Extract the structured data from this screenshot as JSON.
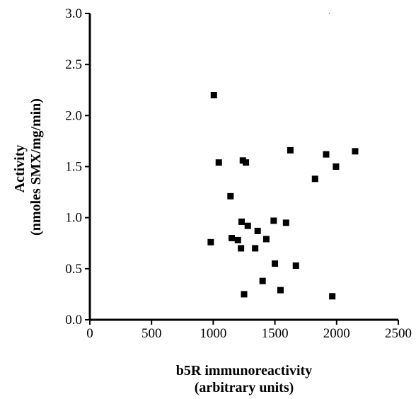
{
  "chart_data": {
    "type": "scatter",
    "title": "",
    "xlabel": [
      "b5R immunoreactivity",
      "(arbitrary units)"
    ],
    "ylabel": [
      "Activity",
      "(nmoles SMX/mg/min)"
    ],
    "xlim": [
      0,
      2500
    ],
    "ylim": [
      0,
      3.0
    ],
    "x_ticks": [
      "0",
      "500",
      "1000",
      "1500",
      "2000",
      "2500"
    ],
    "y_ticks": [
      "0.0",
      "0.5",
      "1.0",
      "1.5",
      "2.0",
      "2.5",
      "3.0"
    ],
    "grid": false,
    "legend": "none",
    "marker": "square",
    "marker_color": "#000000",
    "points": [
      {
        "x": 1005,
        "y": 2.2
      },
      {
        "x": 1045,
        "y": 1.54
      },
      {
        "x": 1240,
        "y": 1.56
      },
      {
        "x": 1265,
        "y": 1.54
      },
      {
        "x": 1625,
        "y": 1.66
      },
      {
        "x": 1915,
        "y": 1.62
      },
      {
        "x": 2150,
        "y": 1.65
      },
      {
        "x": 1995,
        "y": 1.5
      },
      {
        "x": 1825,
        "y": 1.38
      },
      {
        "x": 1140,
        "y": 1.21
      },
      {
        "x": 1230,
        "y": 0.96
      },
      {
        "x": 1280,
        "y": 0.92
      },
      {
        "x": 1490,
        "y": 0.97
      },
      {
        "x": 1590,
        "y": 0.95
      },
      {
        "x": 1360,
        "y": 0.87
      },
      {
        "x": 1150,
        "y": 0.8
      },
      {
        "x": 1200,
        "y": 0.78
      },
      {
        "x": 1430,
        "y": 0.79
      },
      {
        "x": 980,
        "y": 0.76
      },
      {
        "x": 1225,
        "y": 0.7
      },
      {
        "x": 1340,
        "y": 0.7
      },
      {
        "x": 1500,
        "y": 0.55
      },
      {
        "x": 1670,
        "y": 0.53
      },
      {
        "x": 1400,
        "y": 0.38
      },
      {
        "x": 1545,
        "y": 0.29
      },
      {
        "x": 1250,
        "y": 0.25
      },
      {
        "x": 1965,
        "y": 0.23
      }
    ]
  }
}
